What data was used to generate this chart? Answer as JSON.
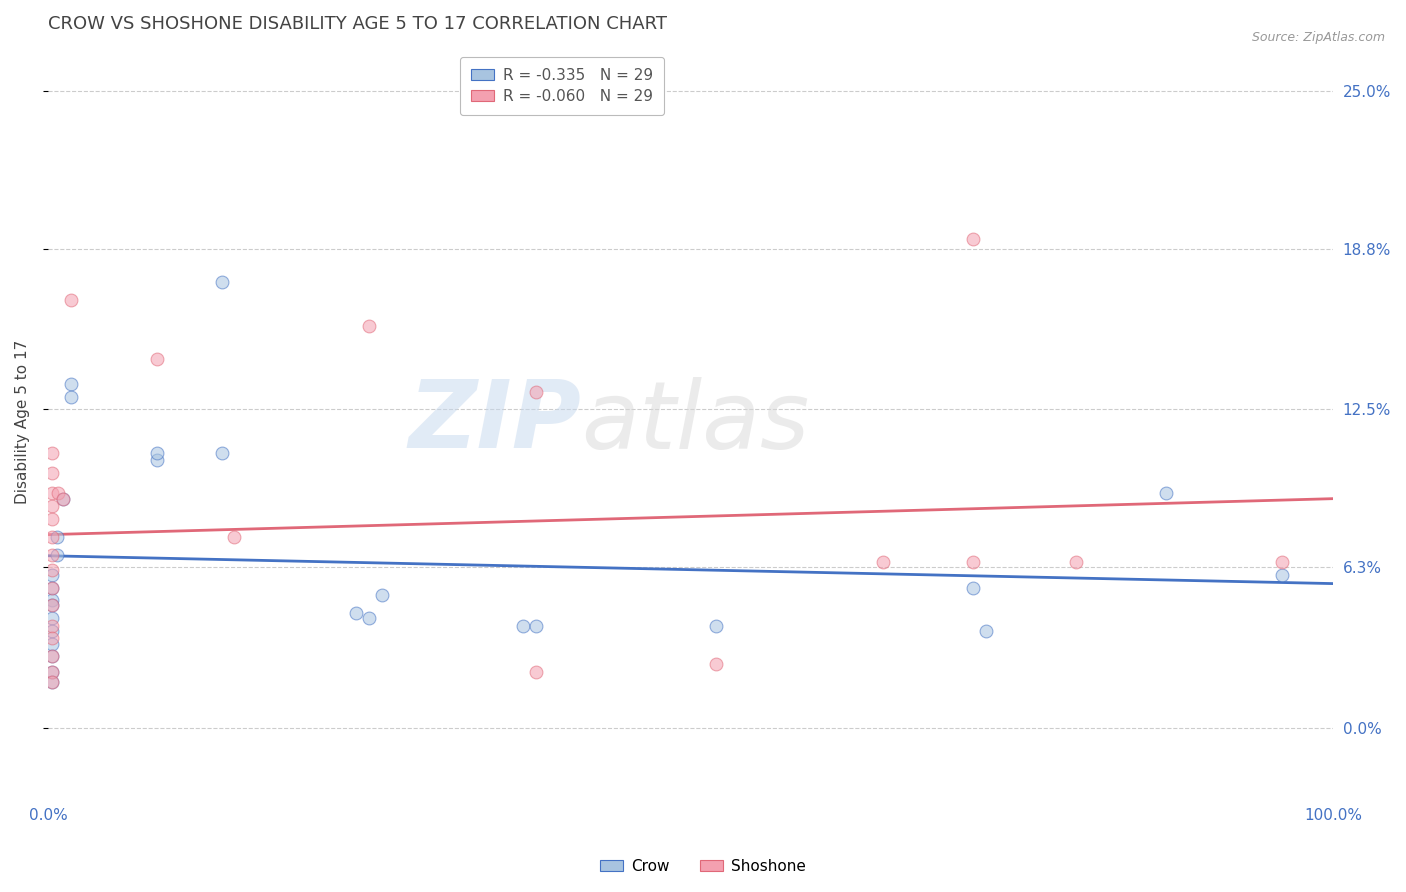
{
  "title": "CROW VS SHOSHONE DISABILITY AGE 5 TO 17 CORRELATION CHART",
  "source_text": "Source: ZipAtlas.com",
  "ylabel": "Disability Age 5 to 17",
  "xlim": [
    0.0,
    1.0
  ],
  "ylim": [
    -0.028,
    0.268
  ],
  "ytick_vals": [
    0.0,
    0.063,
    0.125,
    0.188,
    0.25
  ],
  "ytick_labels": [
    "0.0%",
    "6.3%",
    "12.5%",
    "18.8%",
    "25.0%"
  ],
  "xtick_vals": [
    0.0,
    1.0
  ],
  "xtick_labels": [
    "0.0%",
    "100.0%"
  ],
  "crow_color": "#a8c4e0",
  "shoshone_color": "#f4a0b0",
  "crow_line_color": "#4472c4",
  "shoshone_line_color": "#e06878",
  "crow_R": -0.335,
  "crow_N": 29,
  "shoshone_R": -0.06,
  "shoshone_N": 29,
  "legend_label_crow": "Crow",
  "legend_label_shoshone": "Shoshone",
  "watermark": "ZIPatlas",
  "crow_x": [
    0.003,
    0.003,
    0.003,
    0.003,
    0.003,
    0.003,
    0.003,
    0.003,
    0.003,
    0.003,
    0.007,
    0.007,
    0.012,
    0.018,
    0.018,
    0.085,
    0.085,
    0.135,
    0.135,
    0.24,
    0.25,
    0.26,
    0.37,
    0.38,
    0.52,
    0.72,
    0.73,
    0.87,
    0.96
  ],
  "crow_y": [
    0.06,
    0.055,
    0.05,
    0.048,
    0.043,
    0.038,
    0.033,
    0.028,
    0.022,
    0.018,
    0.075,
    0.068,
    0.09,
    0.135,
    0.13,
    0.105,
    0.108,
    0.175,
    0.108,
    0.045,
    0.043,
    0.052,
    0.04,
    0.04,
    0.04,
    0.055,
    0.038,
    0.092,
    0.06
  ],
  "shoshone_x": [
    0.003,
    0.003,
    0.003,
    0.003,
    0.003,
    0.003,
    0.003,
    0.003,
    0.003,
    0.003,
    0.003,
    0.003,
    0.003,
    0.003,
    0.003,
    0.008,
    0.012,
    0.018,
    0.085,
    0.145,
    0.25,
    0.38,
    0.38,
    0.52,
    0.65,
    0.72,
    0.72,
    0.8,
    0.96
  ],
  "shoshone_y": [
    0.108,
    0.1,
    0.092,
    0.087,
    0.082,
    0.075,
    0.068,
    0.062,
    0.055,
    0.048,
    0.04,
    0.035,
    0.028,
    0.022,
    0.018,
    0.092,
    0.09,
    0.168,
    0.145,
    0.075,
    0.158,
    0.132,
    0.022,
    0.025,
    0.065,
    0.192,
    0.065,
    0.065,
    0.065
  ],
  "background_color": "#ffffff",
  "title_color": "#444444",
  "axis_color": "#4472c4",
  "grid_color": "#cccccc",
  "title_fontsize": 13,
  "label_fontsize": 11,
  "tick_fontsize": 11,
  "marker_size": 85,
  "marker_alpha": 0.55,
  "marker_edge_width": 0.8,
  "regression_lw": 2.0
}
